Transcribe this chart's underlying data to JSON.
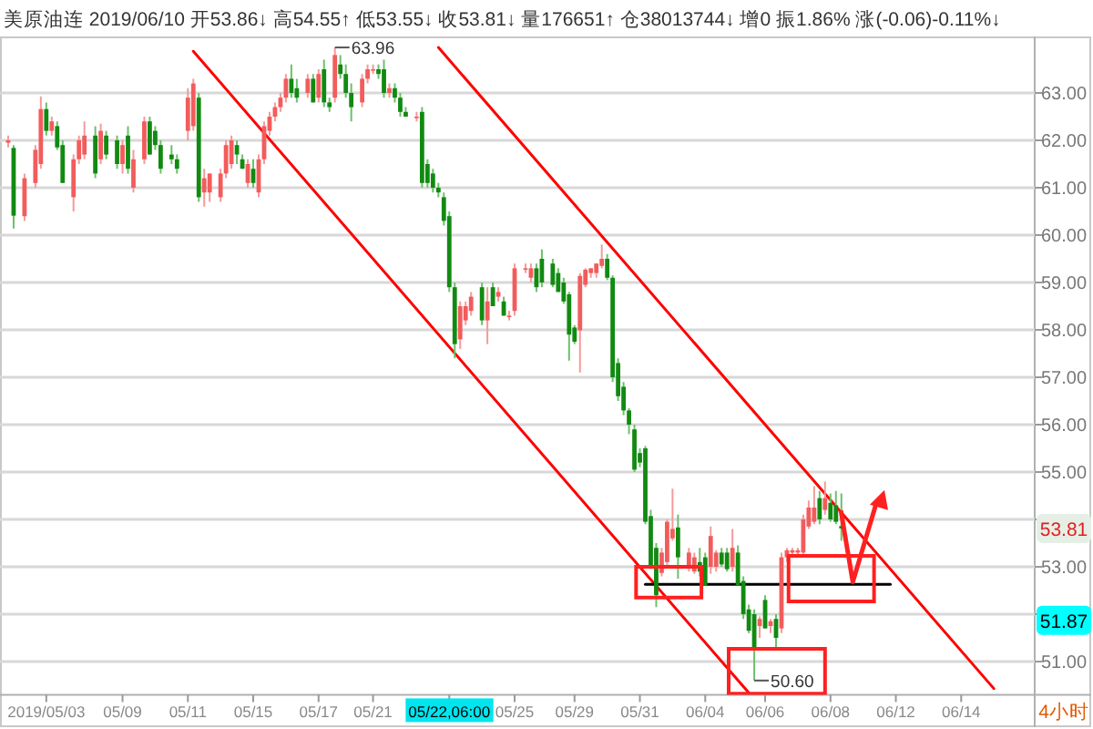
{
  "chart_data": {
    "type": "candlestick",
    "title": "美原油连 2019/06/10 开53.86↓ 高54.55↑ 低53.55↓ 收53.81↓ 量176651↑ 仓38013744↓ 增0 振1.86% 涨(-0.06)-0.11%↓",
    "categories": [
      null,
      null,
      null,
      null,
      null,
      null,
      null,
      null,
      "2019/05/03",
      null,
      null,
      null,
      null,
      null,
      null,
      null,
      null,
      null,
      null,
      null,
      null,
      null,
      "05/09",
      null,
      null,
      null,
      null,
      null,
      null,
      null,
      null,
      null,
      null,
      null,
      "05/11",
      null,
      null,
      null,
      null,
      null,
      null,
      null,
      null,
      null,
      null,
      null,
      "05/15",
      null,
      null,
      null,
      null,
      null,
      null,
      null,
      null,
      null,
      null,
      null,
      "05/17",
      null,
      null,
      null,
      null,
      null,
      null,
      null,
      null,
      null,
      "05/21",
      null,
      null,
      null,
      null,
      null,
      null,
      null,
      null,
      null,
      null,
      null,
      null,
      null,
      "05/22,06:00",
      null,
      null,
      null,
      null,
      null,
      null,
      null,
      null,
      null,
      null,
      null,
      "05/25",
      null,
      null,
      null,
      null,
      null,
      null,
      null,
      null,
      null,
      null,
      "05/29",
      null,
      null,
      null,
      null,
      null,
      null,
      null,
      null,
      null,
      null,
      null,
      "05/31",
      null,
      null,
      null,
      null,
      null,
      null,
      null,
      null,
      null,
      null,
      null,
      "06/04",
      null,
      null,
      null,
      null,
      null,
      null,
      null,
      null,
      null,
      null,
      "06/06",
      null,
      null,
      null,
      null,
      null,
      null,
      null,
      null,
      null,
      null,
      null,
      "06/08",
      null,
      null,
      null,
      null,
      null,
      null,
      null,
      null,
      null,
      null,
      null,
      "06/12",
      null,
      null,
      null,
      null,
      null,
      null,
      null,
      null,
      null,
      null,
      null,
      "06/14",
      null,
      null,
      null,
      null,
      null,
      null,
      null,
      null,
      null,
      null,
      null,
      null,
      null
    ],
    "ohlc": [
      null,
      [
        61.95,
        62.1,
        61.85,
        62.0
      ],
      [
        61.84,
        61.9,
        60.14,
        60.41
      ],
      null,
      [
        60.4,
        61.3,
        60.3,
        61.2
      ],
      null,
      [
        61.1,
        61.9,
        61.0,
        61.8
      ],
      [
        61.5,
        62.93,
        61.4,
        62.66
      ],
      [
        62.66,
        62.8,
        62.1,
        62.2
      ],
      [
        62.2,
        62.5,
        62.1,
        62.4
      ],
      [
        62.3,
        62.4,
        61.8,
        61.85
      ],
      [
        61.9,
        62.0,
        61.1,
        61.1
      ],
      null,
      [
        60.8,
        61.7,
        60.5,
        61.6
      ],
      [
        61.6,
        62.1,
        61.5,
        62.0
      ],
      [
        61.7,
        62.4,
        61.6,
        62.1
      ],
      null,
      [
        62.1,
        62.3,
        61.2,
        61.3
      ],
      [
        61.6,
        62.35,
        61.5,
        62.2
      ],
      [
        62.1,
        62.2,
        61.6,
        61.7
      ],
      null,
      [
        62.0,
        62.1,
        61.4,
        61.5
      ],
      [
        61.5,
        62.0,
        61.3,
        61.9
      ],
      [
        62.1,
        62.3,
        61.3,
        61.4
      ],
      [
        61.0,
        61.8,
        60.9,
        61.6
      ],
      null,
      [
        61.6,
        62.5,
        61.5,
        62.4
      ],
      [
        62.4,
        62.5,
        61.7,
        61.7
      ],
      [
        62.2,
        62.3,
        61.8,
        61.9
      ],
      [
        61.9,
        62.0,
        61.3,
        61.4
      ],
      null,
      [
        61.7,
        61.9,
        61.5,
        61.6
      ],
      [
        61.6,
        61.7,
        61.3,
        61.4
      ],
      null,
      [
        62.2,
        63.1,
        62.0,
        62.9
      ],
      [
        62.3,
        63.3,
        62.2,
        63.2
      ],
      [
        62.9,
        63.0,
        60.7,
        60.8
      ],
      [
        60.9,
        61.4,
        60.6,
        61.2
      ],
      [
        60.9,
        61.3,
        60.7,
        61.3
      ],
      null,
      [
        60.8,
        61.4,
        60.7,
        61.3
      ],
      [
        61.3,
        62.0,
        61.2,
        61.9
      ],
      [
        61.5,
        62.1,
        61.4,
        62.0
      ],
      [
        61.9,
        62.0,
        61.5,
        61.7
      ],
      [
        61.6,
        61.7,
        61.4,
        61.4
      ],
      [
        61.1,
        61.6,
        61.0,
        61.5
      ],
      [
        61.4,
        61.6,
        61.0,
        61.1
      ],
      [
        60.9,
        61.7,
        60.8,
        61.6
      ],
      [
        61.6,
        62.4,
        61.5,
        62.3
      ],
      [
        62.2,
        62.6,
        62.1,
        62.5
      ],
      [
        62.5,
        62.8,
        62.4,
        62.7
      ],
      [
        62.7,
        63.0,
        62.6,
        62.9
      ],
      [
        62.9,
        63.4,
        62.8,
        63.3
      ],
      [
        63.3,
        63.6,
        62.9,
        63.0
      ],
      [
        63.1,
        63.3,
        62.8,
        62.9
      ],
      null,
      [
        63.0,
        63.4,
        62.9,
        63.3
      ],
      [
        63.3,
        63.4,
        62.8,
        62.8
      ],
      [
        62.9,
        63.5,
        62.8,
        63.4
      ],
      [
        63.5,
        63.7,
        62.7,
        62.8
      ],
      [
        62.8,
        62.9,
        62.6,
        62.7
      ],
      [
        62.9,
        63.96,
        62.8,
        63.8
      ],
      [
        63.6,
        63.8,
        63.3,
        63.4
      ],
      [
        63.4,
        63.6,
        62.9,
        63.0
      ],
      [
        63.0,
        63.2,
        62.4,
        62.7
      ],
      null,
      [
        62.8,
        63.4,
        62.7,
        63.3
      ],
      [
        63.3,
        63.6,
        63.2,
        63.5
      ],
      [
        63.5,
        63.6,
        63.4,
        63.5
      ],
      [
        63.5,
        63.6,
        63.3,
        63.4
      ],
      [
        63.5,
        63.7,
        62.9,
        63.0
      ],
      [
        63.0,
        63.2,
        62.9,
        63.1
      ],
      [
        63.1,
        63.2,
        62.8,
        62.9
      ],
      [
        62.9,
        63.0,
        62.5,
        62.6
      ],
      [
        62.6,
        62.7,
        62.5,
        62.5
      ],
      null,
      [
        62.5,
        62.6,
        62.4,
        62.5
      ],
      [
        62.6,
        62.7,
        61.0,
        61.1
      ],
      [
        61.5,
        61.6,
        61.0,
        61.1
      ],
      [
        61.3,
        61.4,
        60.9,
        61.0
      ],
      [
        61.0,
        61.1,
        60.8,
        60.9
      ],
      [
        60.8,
        60.9,
        60.2,
        60.3
      ],
      [
        60.4,
        60.5,
        58.8,
        58.9
      ],
      [
        58.9,
        59.0,
        57.4,
        57.7
      ],
      [
        57.8,
        58.6,
        57.6,
        58.5
      ],
      [
        58.2,
        58.6,
        58.1,
        58.5
      ],
      [
        58.4,
        58.8,
        58.3,
        58.7
      ],
      null,
      [
        58.9,
        59.0,
        58.1,
        58.2
      ],
      [
        58.2,
        58.9,
        57.7,
        58.6
      ],
      [
        58.9,
        59.0,
        58.5,
        58.5
      ],
      [
        58.7,
        58.9,
        58.6,
        58.8
      ],
      [
        58.6,
        58.7,
        58.3,
        58.3
      ],
      [
        58.3,
        58.4,
        58.2,
        58.3
      ],
      [
        58.4,
        59.4,
        58.3,
        59.3
      ],
      null,
      [
        59.3,
        59.4,
        59.2,
        59.3
      ],
      [
        59.1,
        59.4,
        59.0,
        59.3
      ],
      [
        59.3,
        59.4,
        58.8,
        58.9
      ],
      [
        59.5,
        59.7,
        58.9,
        59.0
      ],
      null,
      [
        59.4,
        59.5,
        58.9,
        58.95
      ],
      [
        59.2,
        59.3,
        58.8,
        58.8
      ],
      [
        59.0,
        59.1,
        58.55,
        58.6
      ],
      [
        58.75,
        58.8,
        57.35,
        57.9
      ],
      [
        58.05,
        58.1,
        57.7,
        57.75
      ],
      [
        57.99,
        59.2,
        57.1,
        59.14
      ],
      [
        58.95,
        59.3,
        58.9,
        59.27
      ],
      [
        59.2,
        59.3,
        59.1,
        59.3
      ],
      [
        59.2,
        59.4,
        59.1,
        59.4
      ],
      [
        59.35,
        59.8,
        59.3,
        59.5
      ],
      [
        59.5,
        59.6,
        59.05,
        59.1
      ],
      [
        59.1,
        59.15,
        56.9,
        57.0
      ],
      [
        57.3,
        57.4,
        56.5,
        56.6
      ],
      [
        56.8,
        56.9,
        56.2,
        56.3
      ],
      [
        56.3,
        56.35,
        55.8,
        56.0
      ],
      [
        55.9,
        56.0,
        55.0,
        55.05
      ],
      [
        55.4,
        55.5,
        55.1,
        55.2
      ],
      [
        55.5,
        55.55,
        53.9,
        53.95
      ],
      [
        54.07,
        54.2,
        52.95,
        52.99
      ],
      [
        53.4,
        53.5,
        52.15,
        52.4
      ],
      [
        52.87,
        53.4,
        52.8,
        53.3
      ],
      [
        53.1,
        54.0,
        53.0,
        53.95
      ],
      [
        53.6,
        54.65,
        53.55,
        53.8
      ],
      [
        53.83,
        54.1,
        52.75,
        53.2
      ],
      null,
      [
        53.0,
        53.4,
        52.9,
        53.3
      ],
      [
        52.9,
        53.3,
        52.85,
        53.2
      ],
      [
        53.1,
        53.4,
        52.8,
        52.9
      ],
      [
        53.2,
        53.3,
        52.6,
        52.6
      ],
      [
        53.0,
        53.85,
        52.85,
        53.65
      ],
      [
        53.0,
        53.35,
        52.9,
        53.3
      ],
      [
        53.3,
        53.4,
        53.0,
        53.05
      ],
      [
        53.3,
        53.4,
        52.9,
        52.95
      ],
      [
        53.0,
        53.8,
        52.9,
        53.4
      ],
      [
        53.3,
        53.45,
        52.6,
        52.6
      ],
      [
        52.7,
        52.8,
        51.9,
        52.0
      ],
      [
        52.1,
        52.2,
        51.6,
        51.65
      ],
      [
        52.0,
        52.1,
        50.6,
        51.3
      ],
      [
        51.75,
        51.95,
        51.5,
        51.9
      ],
      [
        52.3,
        52.4,
        51.7,
        51.7
      ],
      [
        51.75,
        51.9,
        51.6,
        51.85
      ],
      [
        51.9,
        52.0,
        51.3,
        51.5
      ],
      [
        51.7,
        53.3,
        51.6,
        53.2
      ],
      [
        53.2,
        53.4,
        53.1,
        53.35
      ],
      [
        53.3,
        53.4,
        53.25,
        53.35
      ],
      [
        53.3,
        53.4,
        53.2,
        53.35
      ],
      [
        53.3,
        54.1,
        53.2,
        54.0
      ],
      [
        53.85,
        54.4,
        53.8,
        54.25
      ],
      [
        53.95,
        54.7,
        53.9,
        54.25
      ],
      [
        54.45,
        54.6,
        53.9,
        54.0
      ],
      [
        54.2,
        54.8,
        54.1,
        54.45
      ],
      [
        54.35,
        54.55,
        53.95,
        54.0
      ],
      [
        54.3,
        54.6,
        53.9,
        53.95
      ],
      [
        53.86,
        54.55,
        53.55,
        53.81
      ],
      null,
      null,
      null,
      null,
      null,
      null,
      null,
      null,
      null,
      null,
      null,
      null,
      null,
      null,
      null,
      null,
      null,
      null,
      null,
      null,
      null,
      null,
      null,
      null,
      null,
      null,
      null,
      null,
      null,
      null,
      null,
      null,
      null,
      null,
      null
    ],
    "series": [
      {
        "type": "line",
        "color": "#ff0000",
        "values": [
          null,
          null,
          null,
          null,
          null,
          null,
          null,
          null,
          null,
          null,
          null,
          null,
          null,
          null,
          null,
          null,
          null,
          null,
          null,
          null,
          null,
          null,
          null,
          null,
          null,
          null,
          null,
          null,
          null,
          null,
          null,
          null,
          null,
          null,
          null,
          63.88,
          null,
          null,
          null,
          null,
          null,
          null,
          null,
          null,
          null,
          null,
          null,
          null,
          null,
          null,
          null,
          null,
          null,
          null,
          null,
          null,
          null,
          null,
          null,
          null,
          null,
          null,
          null,
          null,
          null,
          null,
          null,
          null,
          null,
          null,
          null,
          null,
          null,
          null,
          null,
          null,
          null,
          null,
          null,
          null,
          null,
          null,
          null,
          null,
          null,
          null,
          null,
          null,
          null,
          null,
          null,
          null,
          null,
          null,
          null,
          null,
          null,
          null,
          null,
          null,
          null,
          null,
          null,
          null,
          null,
          null,
          null,
          null,
          null,
          null,
          null,
          null,
          null,
          null,
          null,
          null,
          null,
          null,
          null,
          null,
          null,
          null,
          null,
          null,
          null,
          null,
          null,
          null,
          null,
          null,
          null,
          null,
          null,
          null,
          null,
          null,
          null,
          50.34,
          null,
          null,
          null,
          null,
          null,
          null,
          null,
          null,
          null,
          null,
          null,
          null,
          null,
          null,
          null,
          null,
          null,
          null,
          null,
          null,
          null,
          null,
          null,
          null,
          null,
          null,
          null,
          null,
          null,
          null,
          null,
          null,
          null,
          null,
          null,
          null,
          null,
          null,
          null,
          null,
          null,
          null,
          null,
          null,
          null,
          null,
          null,
          null,
          null,
          null,
          null,
          null
        ]
      },
      {
        "type": "line",
        "color": "#ff0000",
        "values": [
          null,
          null,
          null,
          null,
          null,
          null,
          null,
          null,
          null,
          null,
          null,
          null,
          null,
          null,
          null,
          null,
          null,
          null,
          null,
          null,
          null,
          null,
          null,
          null,
          null,
          null,
          null,
          null,
          null,
          null,
          null,
          null,
          null,
          null,
          null,
          null,
          null,
          null,
          null,
          null,
          null,
          null,
          null,
          null,
          null,
          null,
          null,
          null,
          null,
          null,
          null,
          null,
          null,
          null,
          null,
          null,
          null,
          null,
          null,
          null,
          null,
          null,
          null,
          null,
          null,
          null,
          null,
          null,
          null,
          null,
          null,
          null,
          null,
          null,
          null,
          null,
          null,
          null,
          null,
          null,
          63.96,
          null,
          null,
          null,
          null,
          null,
          null,
          null,
          null,
          null,
          null,
          null,
          null,
          null,
          null,
          null,
          null,
          null,
          null,
          null,
          null,
          null,
          null,
          null,
          null,
          null,
          null,
          null,
          null,
          null,
          null,
          null,
          null,
          null,
          null,
          null,
          null,
          null,
          null,
          null,
          null,
          null,
          null,
          null,
          null,
          null,
          null,
          null,
          null,
          null,
          null,
          null,
          null,
          null,
          null,
          null,
          null,
          null,
          null,
          null,
          null,
          null,
          null,
          null,
          null,
          null,
          null,
          null,
          null,
          null,
          null,
          null,
          null,
          null,
          null,
          null,
          null,
          null,
          null,
          null,
          null,
          null,
          null,
          null,
          null,
          null,
          null,
          null,
          null,
          null,
          null,
          null,
          null,
          null,
          null,
          null,
          null,
          null,
          null,
          null,
          null,
          null,
          50.43,
          null,
          null,
          null,
          null,
          null,
          null,
          null
        ]
      },
      {
        "type": "line",
        "color": "#000000",
        "values": [
          null,
          null,
          null,
          null,
          null,
          null,
          null,
          null,
          null,
          null,
          null,
          null,
          null,
          null,
          null,
          null,
          null,
          null,
          null,
          null,
          null,
          null,
          null,
          null,
          null,
          null,
          null,
          null,
          null,
          null,
          null,
          null,
          null,
          null,
          null,
          null,
          null,
          null,
          null,
          null,
          null,
          null,
          null,
          null,
          null,
          null,
          null,
          null,
          null,
          null,
          null,
          null,
          null,
          null,
          null,
          null,
          null,
          null,
          null,
          null,
          null,
          null,
          null,
          null,
          null,
          null,
          null,
          null,
          null,
          null,
          null,
          null,
          null,
          null,
          null,
          null,
          null,
          null,
          null,
          null,
          null,
          null,
          null,
          null,
          null,
          null,
          null,
          null,
          null,
          null,
          null,
          null,
          null,
          null,
          null,
          null,
          null,
          null,
          null,
          null,
          null,
          null,
          null,
          null,
          null,
          null,
          null,
          null,
          null,
          null,
          null,
          null,
          null,
          null,
          null,
          null,
          null,
          null,
          52.63,
          null,
          null,
          null,
          null,
          null,
          null,
          null,
          null,
          null,
          null,
          null,
          null,
          null,
          null,
          null,
          null,
          null,
          null,
          null,
          null,
          null,
          null,
          null,
          null,
          null,
          null,
          null,
          null,
          null,
          null,
          null,
          null,
          null,
          null,
          null,
          null,
          null,
          null,
          null,
          null,
          null,
          null,
          null,
          null,
          52.63,
          null,
          null,
          null,
          null,
          null,
          null,
          null,
          null,
          null,
          null,
          null,
          null,
          null,
          null,
          null,
          null,
          null,
          null,
          null,
          null,
          null,
          null,
          null,
          null,
          null,
          null
        ]
      }
    ],
    "ylim": [
      50.3,
      64.1
    ],
    "yticks": [
      {
        "value": 51,
        "label": "51.00"
      },
      {
        "value": 52,
        "label": null
      },
      {
        "value": 53,
        "label": "53.00"
      },
      {
        "value": 54,
        "label": null
      },
      {
        "value": 55,
        "label": "55.00"
      },
      {
        "value": 56,
        "label": "56.00"
      },
      {
        "value": 57,
        "label": "57.00"
      },
      {
        "value": 58,
        "label": "58.00"
      },
      {
        "value": 59,
        "label": "59.00"
      },
      {
        "value": 60,
        "label": "60.00"
      },
      {
        "value": 61,
        "label": "61.00"
      },
      {
        "value": 62,
        "label": "62.00"
      },
      {
        "value": 63,
        "label": "63.00"
      }
    ],
    "grid": "y",
    "annotations": [
      "63.96",
      "50.60",
      {
        "text": "53.81",
        "y": 53.81
      },
      {
        "text": "51.87",
        "y": 51.87
      },
      "4小时"
    ]
  }
}
